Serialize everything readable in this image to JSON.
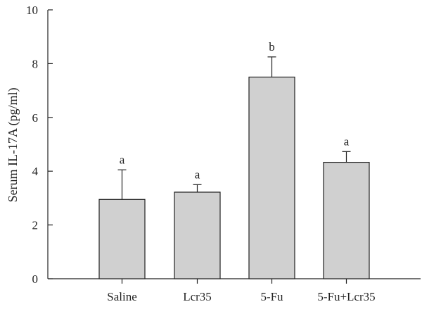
{
  "chart_data": {
    "type": "bar",
    "title": "",
    "xlabel": "",
    "ylabel": "Serum IL-17A (pg/ml)",
    "categories": [
      "Saline",
      "Lcr35",
      "5-Fu",
      "5-Fu+Lcr35"
    ],
    "values": [
      2.95,
      3.22,
      7.5,
      4.33
    ],
    "error_upper": [
      1.1,
      0.28,
      0.75,
      0.4
    ],
    "significance_letters": [
      "a",
      "a",
      "b",
      "a"
    ],
    "ylim": [
      0,
      10
    ],
    "yticks": [
      0,
      2,
      4,
      6,
      8,
      10
    ],
    "grid": false,
    "legend": "none",
    "bar_color": "#d0d0d0",
    "edge_color": "#222222"
  }
}
